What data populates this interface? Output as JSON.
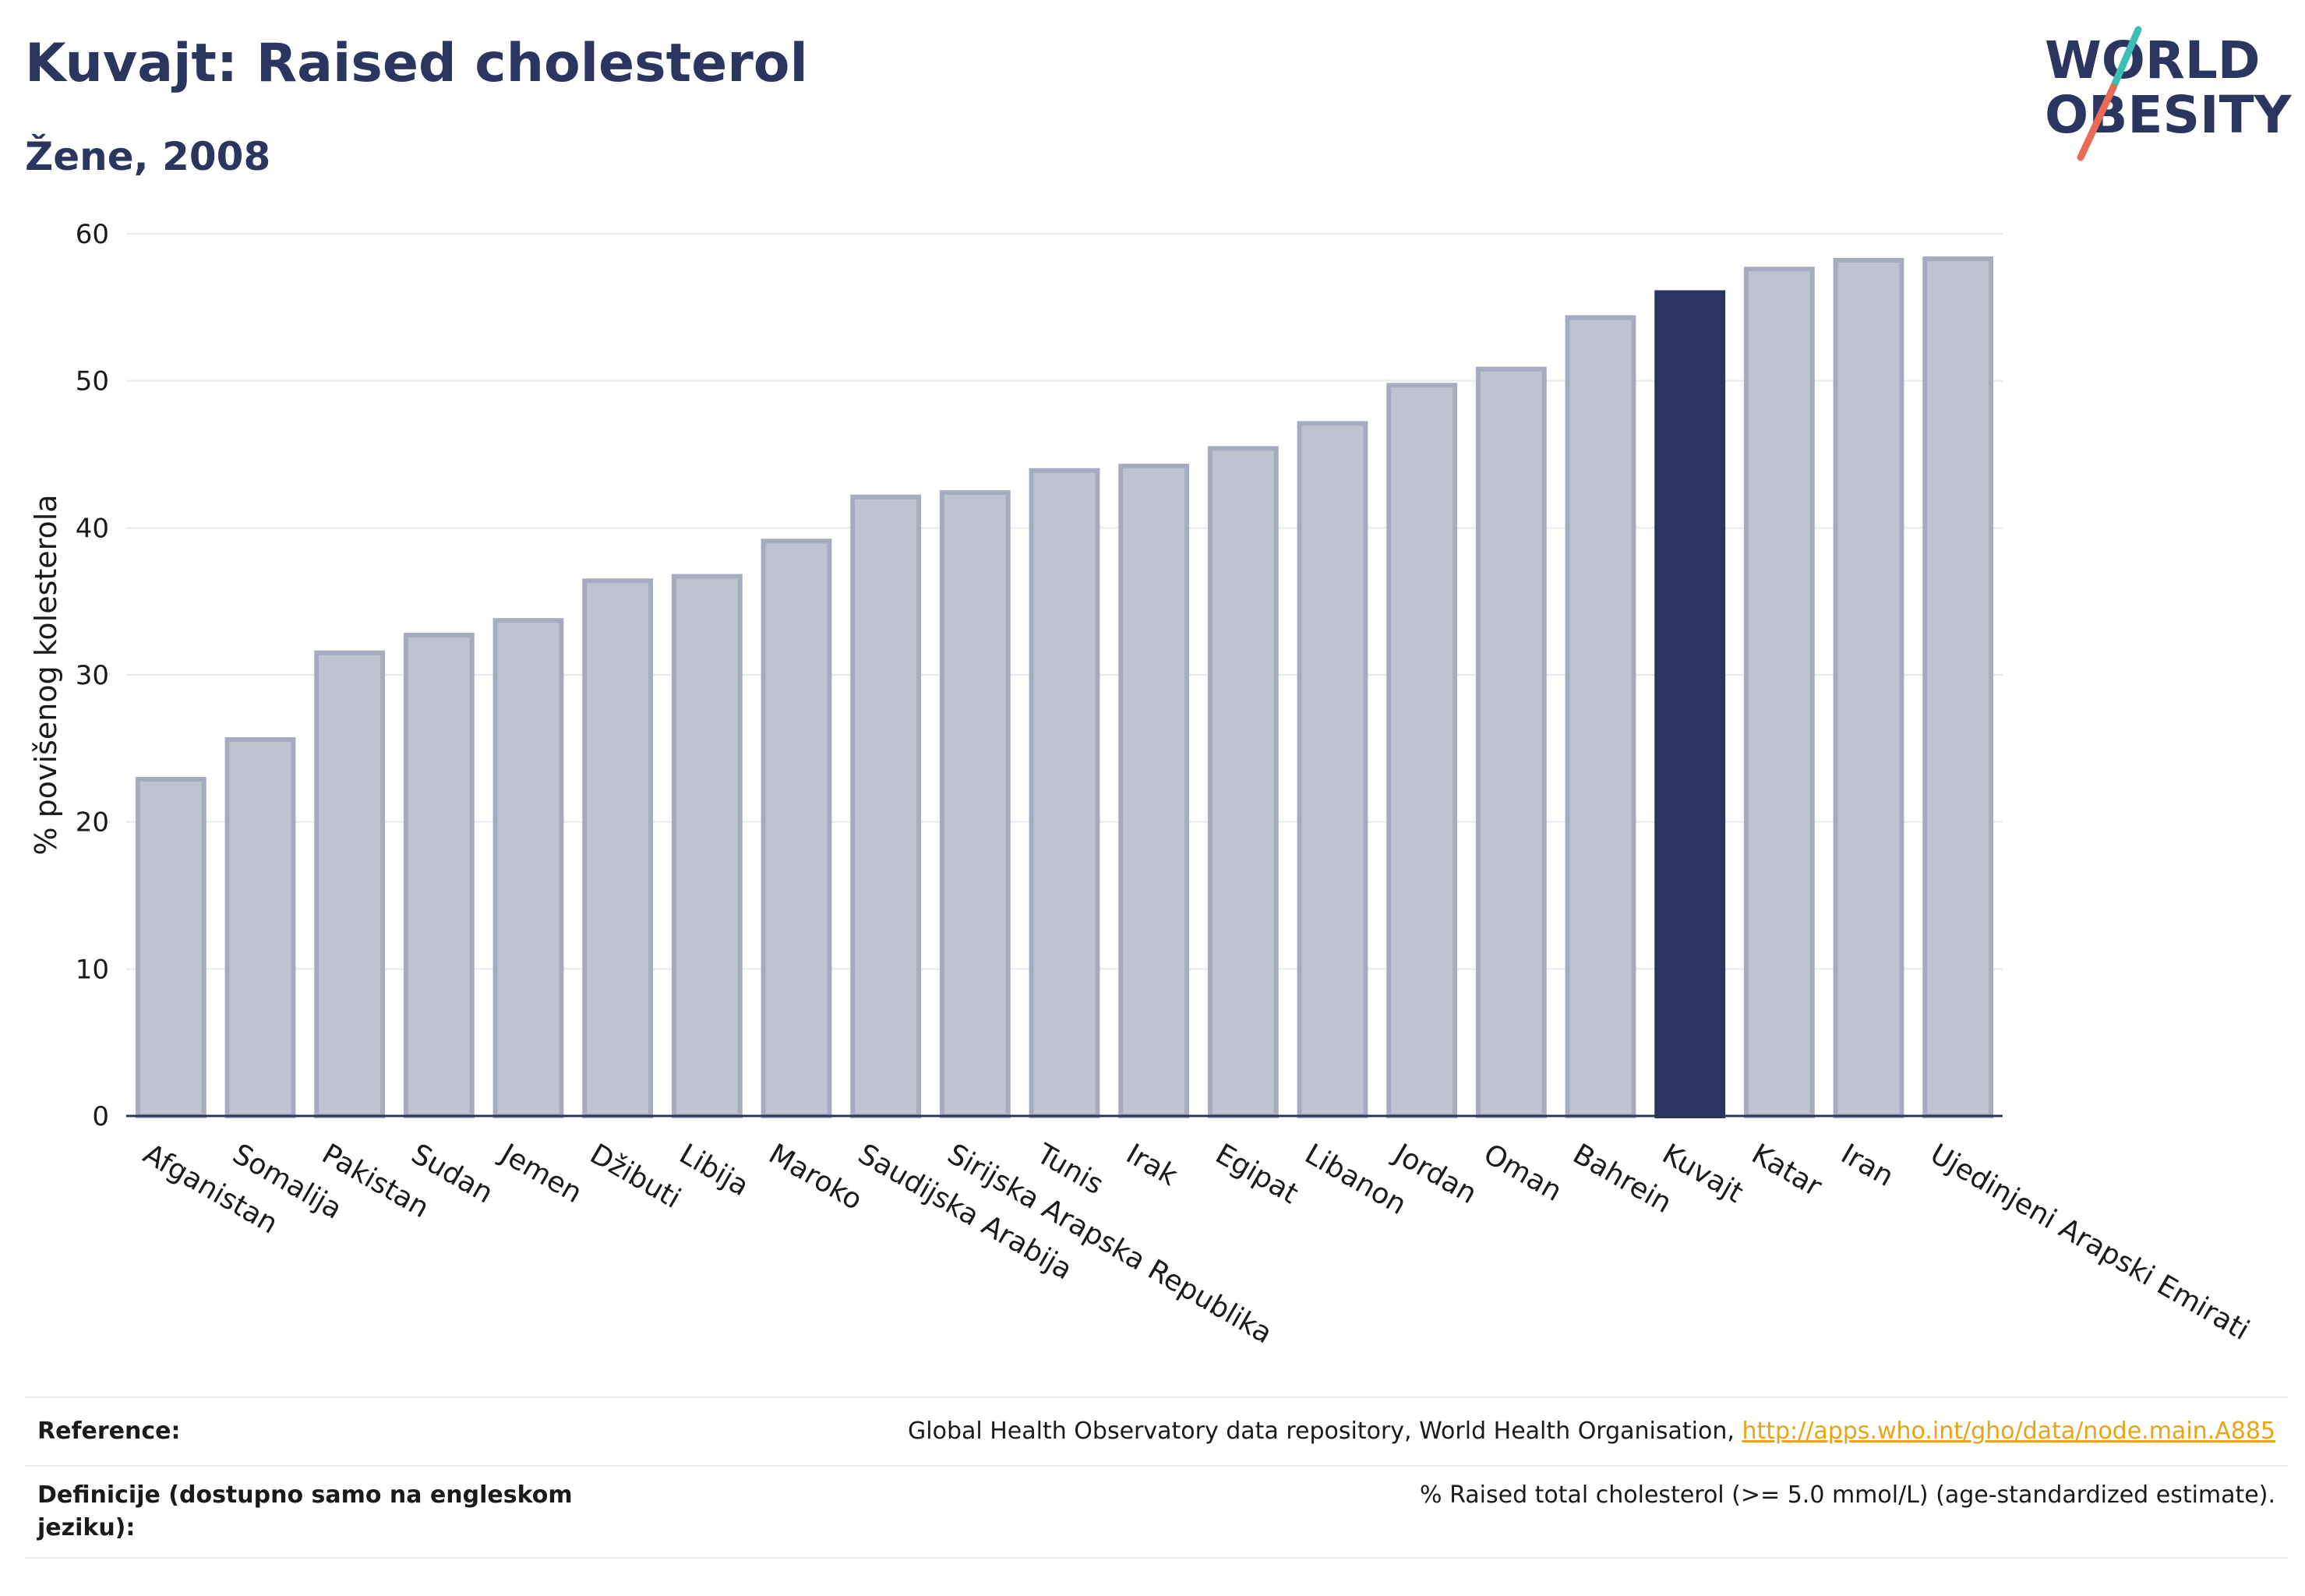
{
  "header": {
    "title": "Kuvajt: Raised cholesterol",
    "subtitle": "Žene, 2008"
  },
  "logo": {
    "line1": "WORLD",
    "line2": "OBESITY"
  },
  "chart_data": {
    "type": "bar",
    "ylabel": "% povišenog kolesterola",
    "xlabel": "",
    "ylim": [
      0,
      60
    ],
    "yticks": [
      0,
      10,
      20,
      30,
      40,
      50,
      60
    ],
    "grid": true,
    "highlight": "Kuvajt",
    "colors": {
      "bar": "#bfc3d0",
      "bar_edge": "#a6abc0",
      "highlight": "#2a3560"
    },
    "categories": [
      "Afganistan",
      "Somalija",
      "Pakistan",
      "Sudan",
      "Jemen",
      "Džibuti",
      "Libija",
      "Maroko",
      "Saudijska Arabija",
      "Sirijska Arapska Republika",
      "Tunis",
      "Irak",
      "Egipat",
      "Libanon",
      "Jordan",
      "Oman",
      "Bahrein",
      "Kuvajt",
      "Katar",
      "Iran",
      "Ujedinjeni Arapski Emirati"
    ],
    "values": [
      22.9,
      25.6,
      31.5,
      32.7,
      33.7,
      36.4,
      36.7,
      39.1,
      42.1,
      42.4,
      43.9,
      44.2,
      45.4,
      47.1,
      49.7,
      50.8,
      54.3,
      56.0,
      57.6,
      58.2,
      58.3
    ]
  },
  "footer": {
    "reference_label": "Reference:",
    "reference_text": "Global Health Observatory data repository, World Health Organisation, ",
    "reference_link": "http://apps.who.int/gho/data/node.main.A885",
    "definition_label": "Definicije (dostupno samo na engleskom jeziku):",
    "definition_text": "% Raised total cholesterol (>= 5.0 mmol/L) (age-standardized estimate)."
  }
}
